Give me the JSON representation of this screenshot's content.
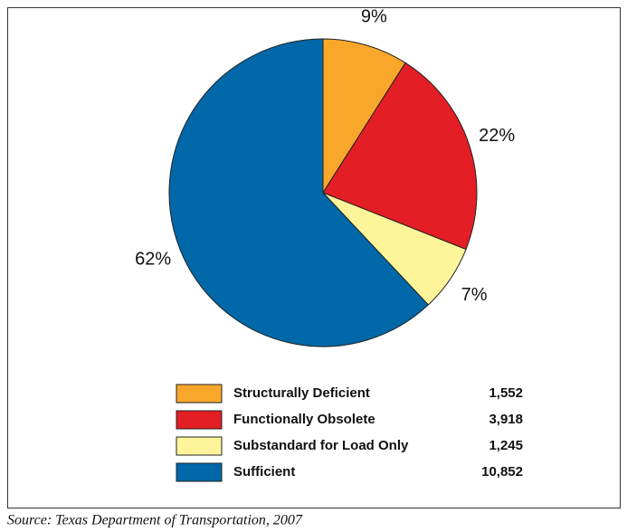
{
  "chart_data": {
    "type": "pie",
    "categories": [
      "Structurally Deficient",
      "Functionally Obsolete",
      "Substandard for Load Only",
      "Sufficient"
    ],
    "values": [
      9,
      22,
      7,
      62
    ],
    "value_labels": [
      "9%",
      "22%",
      "7%",
      "62%"
    ],
    "counts": [
      1552,
      3918,
      1245,
      10852
    ],
    "count_labels": [
      "1,552",
      "3,918",
      "1,245",
      "10,852"
    ],
    "colors": [
      "#f9a72b",
      "#e31e24",
      "#fef59a",
      "#0068a8"
    ],
    "source": "Source: Texas Department of Transportation, 2007"
  }
}
